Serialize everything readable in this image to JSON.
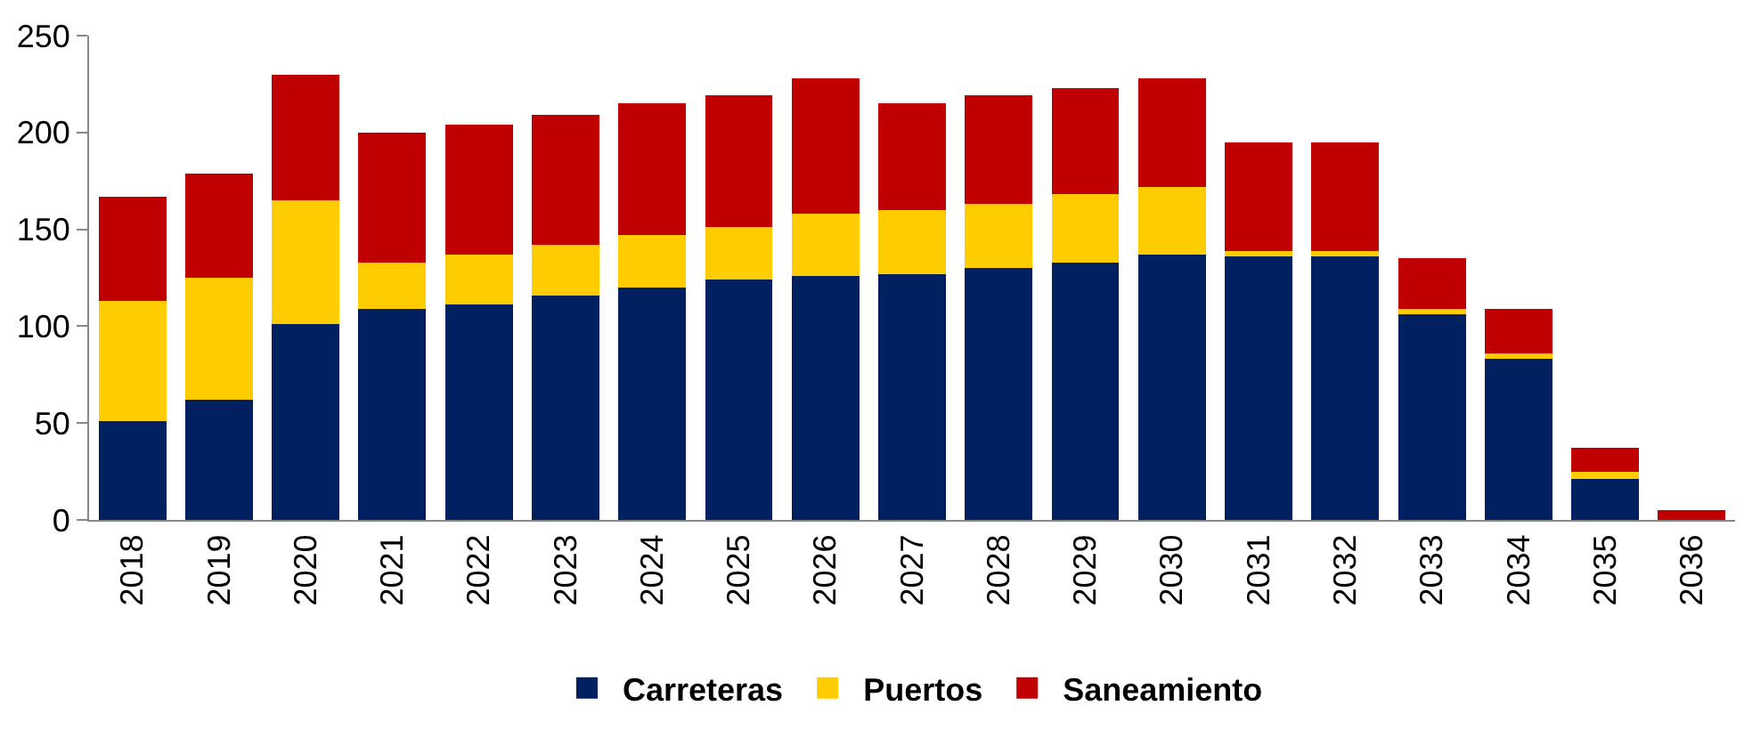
{
  "chart_data": {
    "type": "bar",
    "stacked": true,
    "categories": [
      "2018",
      "2019",
      "2020",
      "2021",
      "2022",
      "2023",
      "2024",
      "2025",
      "2026",
      "2027",
      "2028",
      "2029",
      "2030",
      "2031",
      "2032",
      "2033",
      "2034",
      "2035",
      "2036"
    ],
    "series": [
      {
        "name": "Carreteras",
        "color": "#002060",
        "values": [
          51,
          62,
          101,
          109,
          111,
          116,
          120,
          124,
          126,
          127,
          130,
          133,
          137,
          136,
          136,
          106,
          83,
          21,
          0
        ]
      },
      {
        "name": "Puertos",
        "color": "#ffcc00",
        "values": [
          62,
          63,
          64,
          24,
          26,
          26,
          27,
          27,
          32,
          33,
          33,
          35,
          35,
          3,
          3,
          3,
          3,
          4,
          0
        ]
      },
      {
        "name": "Saneamiento",
        "color": "#c00000",
        "values": [
          54,
          54,
          65,
          67,
          67,
          67,
          68,
          68,
          70,
          55,
          56,
          55,
          56,
          56,
          56,
          26,
          23,
          12,
          5
        ]
      }
    ],
    "ylim": [
      0,
      250
    ],
    "yticks": [
      0,
      50,
      100,
      150,
      200,
      250
    ],
    "legend": "bottom"
  }
}
